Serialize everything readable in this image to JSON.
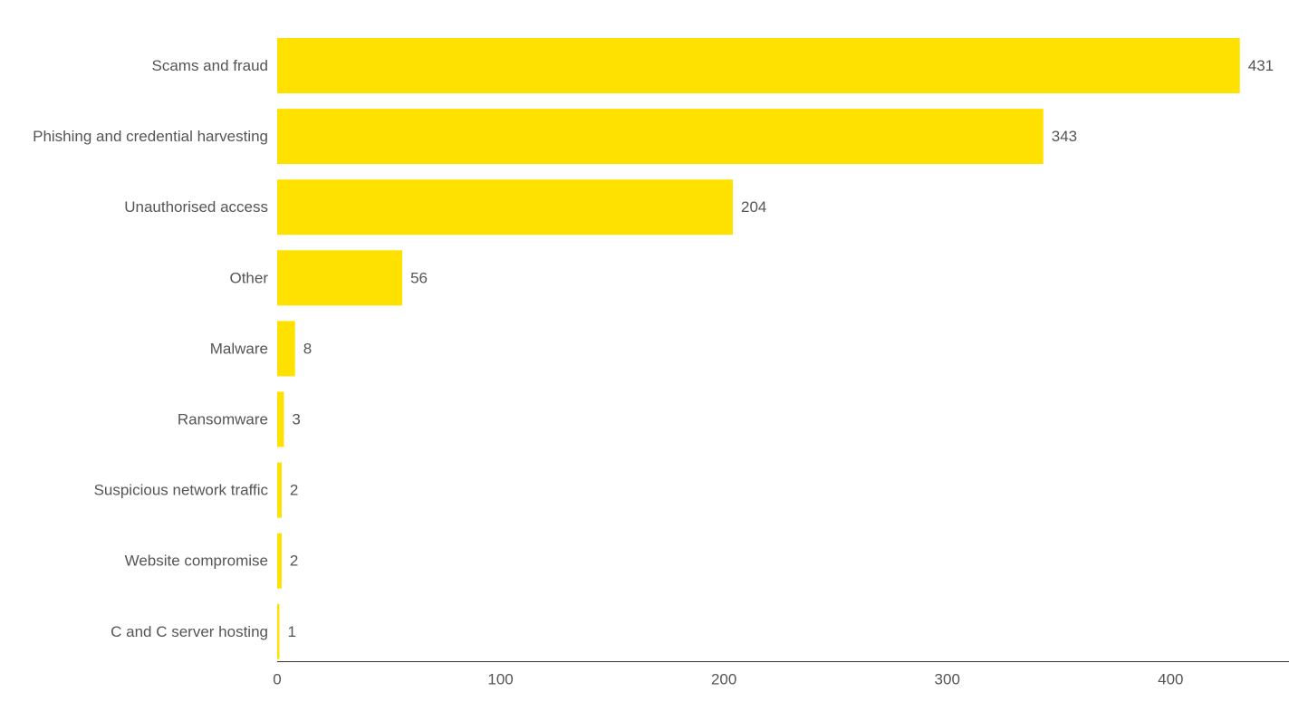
{
  "chart_data": {
    "type": "bar",
    "orientation": "horizontal",
    "title": "",
    "xlabel": "",
    "ylabel": "",
    "categories": [
      "Scams and fraud",
      "Phishing and credential harvesting",
      "Unauthorised access",
      "Other",
      "Malware",
      "Ransomware",
      "Suspicious network traffic",
      "Website compromise",
      "C and C server hosting"
    ],
    "values": [
      431,
      343,
      204,
      56,
      8,
      3,
      2,
      2,
      1
    ],
    "xlim": [
      0,
      453
    ],
    "xticks": [
      0,
      100,
      200,
      300,
      400
    ],
    "grid": false,
    "legend": "none",
    "data_labels": true,
    "colors": {
      "bar": "#FFE100",
      "text": "#555555",
      "axis": "#333333"
    }
  }
}
